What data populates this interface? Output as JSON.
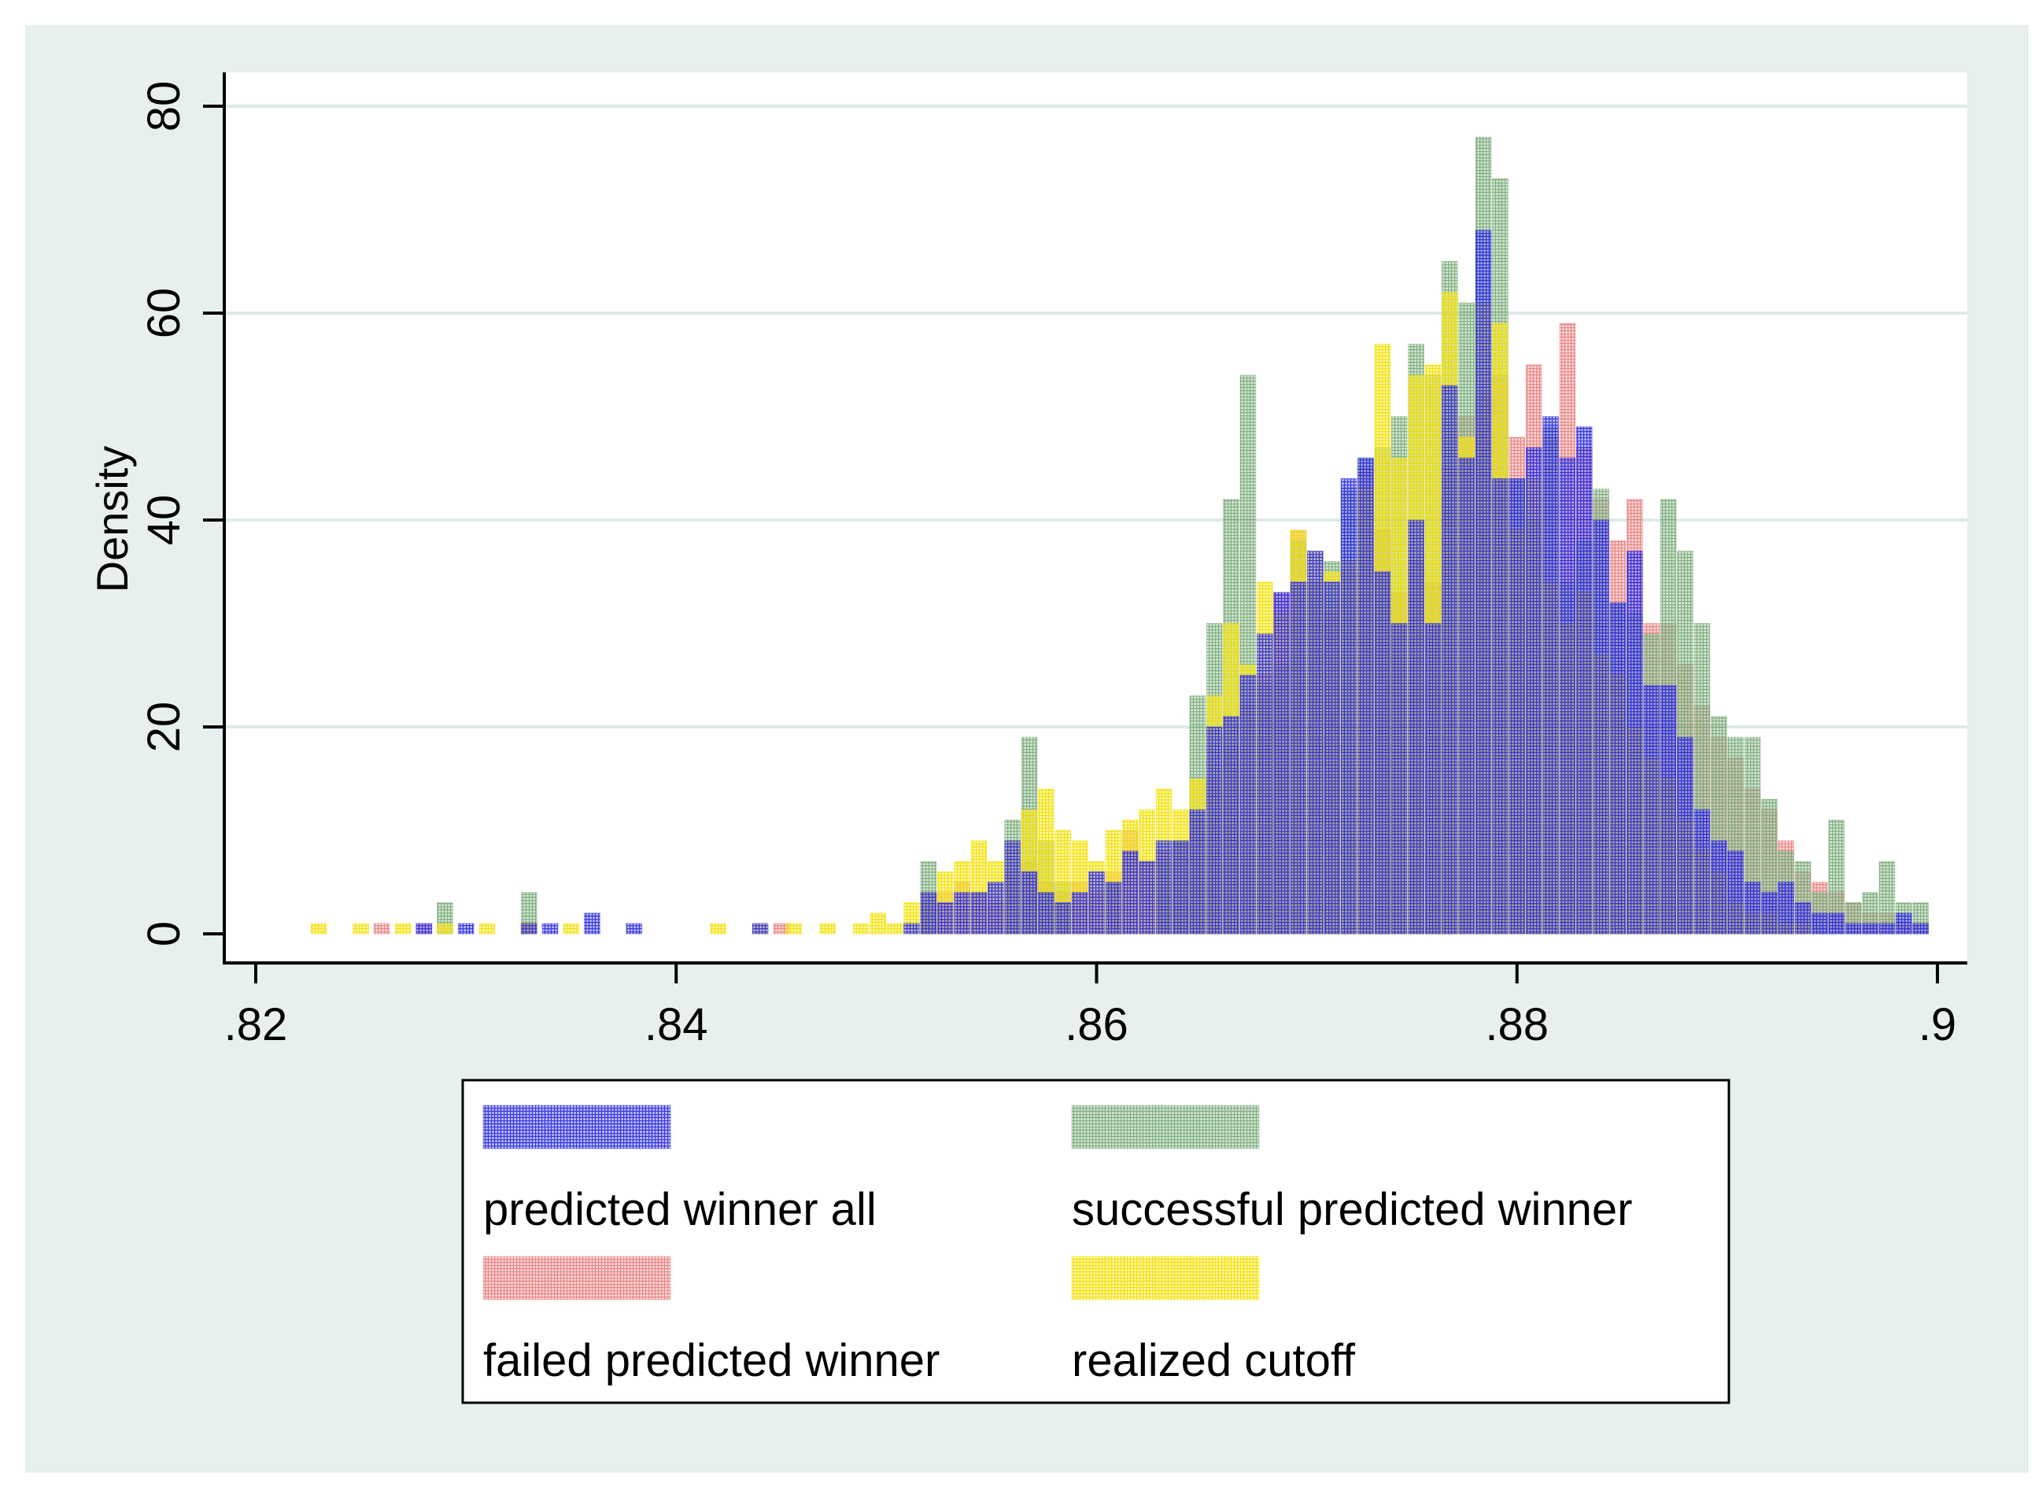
{
  "chart_data": {
    "type": "bar",
    "subtype": "overlaid-histogram",
    "title": "",
    "xlabel": "",
    "ylabel": "Density",
    "xlim": [
      0.82,
      0.9
    ],
    "ylim": [
      0,
      80
    ],
    "x_ticks": [
      0.82,
      0.84,
      0.86,
      0.88,
      0.9
    ],
    "x_tick_labels": [
      ".82",
      ".84",
      ".86",
      ".88",
      ".9"
    ],
    "y_ticks": [
      0,
      20,
      40,
      60,
      80
    ],
    "y_tick_labels": [
      "0",
      "20",
      "40",
      "60",
      "80"
    ],
    "grid": "horizontal",
    "legend_placement": "bottom",
    "bin_width": 0.0008,
    "series": [
      {
        "name": "predicted winner all",
        "color": "#2b2be0",
        "x": [
          0.828,
          0.83,
          0.833,
          0.834,
          0.836,
          0.838,
          0.844,
          0.8512,
          0.852,
          0.8528,
          0.8536,
          0.8544,
          0.8552,
          0.856,
          0.8568,
          0.8576,
          0.8584,
          0.8592,
          0.86,
          0.8608,
          0.8616,
          0.8624,
          0.8632,
          0.864,
          0.8648,
          0.8656,
          0.8664,
          0.8672,
          0.868,
          0.8688,
          0.8696,
          0.8704,
          0.8712,
          0.872,
          0.8728,
          0.8736,
          0.8744,
          0.8752,
          0.876,
          0.8768,
          0.8776,
          0.8784,
          0.8792,
          0.88,
          0.8808,
          0.8816,
          0.8824,
          0.8832,
          0.884,
          0.8848,
          0.8856,
          0.8864,
          0.8872,
          0.888,
          0.8888,
          0.8896,
          0.8904,
          0.8912,
          0.892,
          0.8928,
          0.8936,
          0.8944,
          0.8952,
          0.896,
          0.8968,
          0.8976,
          0.8984,
          0.8992
        ],
        "values": [
          1,
          1,
          1,
          1,
          2,
          1,
          1,
          1,
          4,
          3,
          4,
          4,
          5,
          9,
          6,
          4,
          3,
          4,
          6,
          5,
          8,
          7,
          9,
          9,
          12,
          20,
          21,
          25,
          29,
          33,
          34,
          37,
          34,
          44,
          46,
          35,
          30,
          40,
          30,
          53,
          46,
          68,
          44,
          44,
          47,
          50,
          46,
          49,
          40,
          32,
          37,
          24,
          24,
          19,
          12,
          9,
          8,
          5,
          4,
          5,
          3,
          2,
          2,
          1,
          1,
          1,
          2,
          1
        ]
      },
      {
        "name": "successful predicted winner",
        "color": "#7aab7a",
        "x": [
          0.829,
          0.833,
          0.852,
          0.856,
          0.8568,
          0.8576,
          0.8584,
          0.8608,
          0.8632,
          0.864,
          0.8648,
          0.8656,
          0.8664,
          0.8672,
          0.868,
          0.8688,
          0.8696,
          0.8704,
          0.8712,
          0.872,
          0.8728,
          0.8736,
          0.8744,
          0.8752,
          0.876,
          0.8768,
          0.8776,
          0.8784,
          0.8792,
          0.88,
          0.8808,
          0.8816,
          0.8824,
          0.8832,
          0.884,
          0.8848,
          0.8856,
          0.8864,
          0.8872,
          0.888,
          0.8888,
          0.8896,
          0.8904,
          0.8912,
          0.892,
          0.8928,
          0.8936,
          0.8944,
          0.8952,
          0.896,
          0.8968,
          0.8976,
          0.8984,
          0.8992
        ],
        "values": [
          3,
          4,
          7,
          11,
          19,
          9,
          5,
          5,
          7,
          9,
          23,
          30,
          42,
          54,
          24,
          26,
          38,
          34,
          36,
          43,
          46,
          47,
          50,
          57,
          54,
          65,
          61,
          77,
          73,
          44,
          40,
          49,
          34,
          38,
          43,
          32,
          31,
          29,
          42,
          37,
          30,
          21,
          19,
          19,
          13,
          8,
          7,
          4,
          11,
          3,
          4,
          7,
          3,
          3
        ]
      },
      {
        "name": "failed predicted winner",
        "color": "#e88080",
        "x": [
          0.826,
          0.828,
          0.833,
          0.845,
          0.852,
          0.8528,
          0.8536,
          0.8544,
          0.8552,
          0.856,
          0.8568,
          0.8576,
          0.8584,
          0.8592,
          0.86,
          0.8608,
          0.8616,
          0.8624,
          0.8632,
          0.864,
          0.8648,
          0.8656,
          0.8664,
          0.8672,
          0.868,
          0.8688,
          0.8696,
          0.8704,
          0.8712,
          0.872,
          0.8728,
          0.8736,
          0.8744,
          0.8752,
          0.876,
          0.8768,
          0.8776,
          0.8784,
          0.8792,
          0.88,
          0.8808,
          0.8816,
          0.8824,
          0.8832,
          0.884,
          0.8848,
          0.8856,
          0.8864,
          0.8872,
          0.888,
          0.8888,
          0.8896,
          0.8904,
          0.8912,
          0.892,
          0.8928,
          0.8936,
          0.8944,
          0.8952,
          0.896,
          0.8968,
          0.8976,
          0.8984,
          0.8992
        ],
        "values": [
          1,
          1,
          1,
          1,
          3,
          4,
          5,
          4,
          3,
          6,
          7,
          5,
          4,
          5,
          4,
          6,
          10,
          7,
          8,
          9,
          11,
          15,
          18,
          22,
          25,
          33,
          39,
          34,
          31,
          35,
          45,
          39,
          33,
          36,
          34,
          45,
          50,
          52,
          54,
          48,
          55,
          48,
          59,
          47,
          42,
          38,
          42,
          30,
          30,
          26,
          22,
          19,
          17,
          14,
          12,
          9,
          6,
          5,
          4,
          3,
          2,
          2,
          1,
          1
        ]
      },
      {
        "name": "realized cutoff",
        "color": "#f2e200",
        "x": [
          0.823,
          0.825,
          0.827,
          0.829,
          0.831,
          0.833,
          0.835,
          0.842,
          0.844,
          0.8456,
          0.8472,
          0.8488,
          0.8496,
          0.8504,
          0.8512,
          0.852,
          0.8528,
          0.8536,
          0.8544,
          0.8552,
          0.856,
          0.8568,
          0.8576,
          0.8584,
          0.8592,
          0.86,
          0.8608,
          0.8616,
          0.8624,
          0.8632,
          0.864,
          0.8648,
          0.8656,
          0.8664,
          0.8672,
          0.868,
          0.8688,
          0.8696,
          0.8704,
          0.8712,
          0.872,
          0.8728,
          0.8736,
          0.8744,
          0.8752,
          0.876,
          0.8768,
          0.8776,
          0.8784,
          0.8792,
          0.88,
          0.8808,
          0.8816,
          0.8824,
          0.8832,
          0.884,
          0.8848,
          0.8856,
          0.8864,
          0.8872,
          0.888,
          0.8888,
          0.8896,
          0.8904,
          0.8912,
          0.892,
          0.8928,
          0.8936
        ],
        "values": [
          1,
          1,
          1,
          1,
          1,
          1,
          1,
          1,
          1,
          1,
          1,
          1,
          2,
          1,
          3,
          4,
          6,
          7,
          9,
          7,
          9,
          12,
          14,
          10,
          9,
          7,
          10,
          11,
          12,
          14,
          12,
          15,
          23,
          30,
          26,
          34,
          31,
          39,
          37,
          35,
          36,
          43,
          57,
          46,
          54,
          55,
          62,
          48,
          61,
          59,
          39,
          44,
          34,
          30,
          33,
          27,
          25,
          20,
          17,
          15,
          11,
          8,
          6,
          3,
          2,
          2,
          1,
          1
        ]
      }
    ]
  }
}
